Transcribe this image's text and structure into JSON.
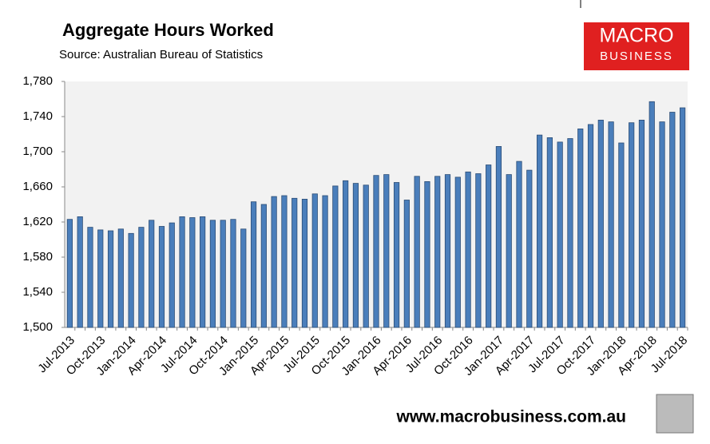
{
  "chart_data": {
    "type": "bar",
    "title": "Aggregate Hours Worked",
    "subtitle": "Source: Australian Bureau of Statistics",
    "logo": {
      "line1": "MACRO",
      "line2": "BUSINESS"
    },
    "footer": "www.macrobusiness.com.au",
    "color": "#4a7ebb",
    "background": "#f2f2f2",
    "categories": [
      "Jul-2013",
      null,
      null,
      "Oct-2013",
      null,
      null,
      "Jan-2014",
      null,
      null,
      "Apr-2014",
      null,
      null,
      "Jul-2014",
      null,
      null,
      "Oct-2014",
      null,
      null,
      "Jan-2015",
      null,
      null,
      "Apr-2015",
      null,
      null,
      "Jul-2015",
      null,
      null,
      "Oct-2015",
      null,
      null,
      "Jan-2016",
      null,
      null,
      "Apr-2016",
      null,
      null,
      "Jul-2016",
      null,
      null,
      "Oct-2016",
      null,
      null,
      "Jan-2017",
      null,
      null,
      "Apr-2017",
      null,
      null,
      "Jul-2017",
      null,
      null,
      "Oct-2017",
      null,
      null,
      "Jan-2018",
      null,
      null,
      "Apr-2018",
      null,
      null,
      "Jul-2018"
    ],
    "values": [
      1623,
      1626,
      1614,
      1611,
      1610,
      1612,
      1607,
      1614,
      1622,
      1615,
      1619,
      1626,
      1625,
      1626,
      1622,
      1622,
      1623,
      1612,
      1643,
      1640,
      1649,
      1650,
      1647,
      1646,
      1652,
      1650,
      1661,
      1667,
      1664,
      1662,
      1673,
      1674,
      1665,
      1645,
      1672,
      1666,
      1672,
      1674,
      1671,
      1677,
      1675,
      1685,
      1706,
      1674,
      1689,
      1679,
      1719,
      1716,
      1711,
      1715,
      1726,
      1731,
      1736,
      1734,
      1710,
      1733,
      1736,
      1757,
      1734,
      1745,
      1750
    ],
    "ylim": [
      1500,
      1780
    ],
    "yticks": [
      {
        "value": 1500,
        "label": "1,500"
      },
      {
        "value": 1540,
        "label": "1,540"
      },
      {
        "value": 1580,
        "label": "1,580"
      },
      {
        "value": 1620,
        "label": "1,620"
      },
      {
        "value": 1660,
        "label": "1,660"
      },
      {
        "value": 1700,
        "label": "1,700"
      },
      {
        "value": 1740,
        "label": "1,740"
      },
      {
        "value": 1780,
        "label": "1,780"
      }
    ]
  }
}
